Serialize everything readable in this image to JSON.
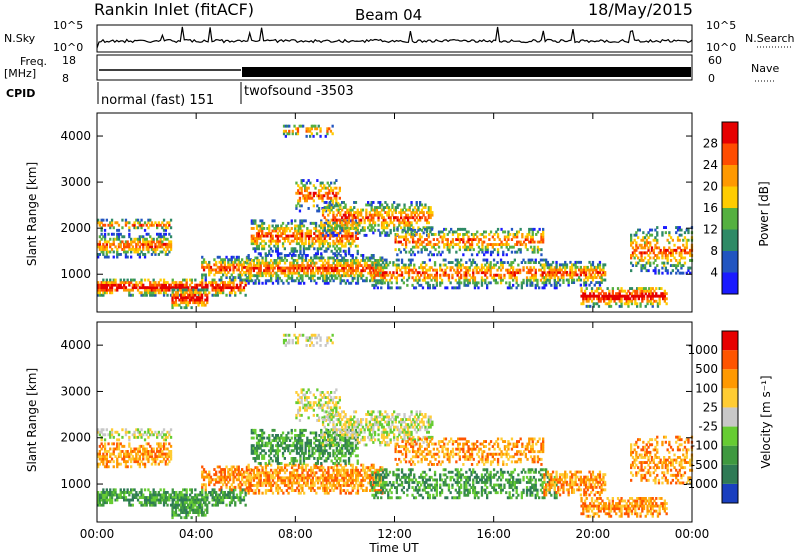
{
  "header": {
    "station": "Rankin Inlet (fitACF)",
    "beam": "Beam 04",
    "date": "18/May/2015"
  },
  "status_panels": {
    "nsky_label": "N.Sky",
    "nsky_ticks": [
      "10^5",
      "10^0"
    ],
    "nsearch_label": "N.Search",
    "nsearch_ticks": [
      "10^5",
      "10^0"
    ],
    "freq_label": "Freq.",
    "freq_unit": "[MHz]",
    "freq_ticks": [
      "18",
      "8"
    ],
    "nave_label": "Nave",
    "nave_ticks": [
      "60",
      "0"
    ],
    "cpid_label": "CPID",
    "cpid_modes": [
      {
        "name": "normal (fast) 151",
        "start_hour": 0.0
      },
      {
        "name": "twofsound -3503",
        "start_hour": 6.0
      }
    ]
  },
  "chart_data": [
    {
      "type": "heatmap",
      "ylabel": "Slant Range [km]",
      "ylim": [
        180,
        4500
      ],
      "yticks": [
        1000,
        2000,
        3000,
        4000
      ],
      "xlabel": "",
      "xlim": [
        0,
        24
      ],
      "colorbar": {
        "label": "Power [dB]",
        "ticks": [
          "4",
          "8",
          "12",
          "16",
          "20",
          "24",
          "28"
        ],
        "colors": [
          "#1a1aff",
          "#2255c0",
          "#2f8a66",
          "#55b040",
          "#ffcc00",
          "#ff9900",
          "#ff4d00",
          "#e60000"
        ]
      }
    },
    {
      "type": "heatmap",
      "ylabel": "Slant Range [km]",
      "ylim": [
        180,
        4500
      ],
      "yticks": [
        1000,
        2000,
        3000,
        4000
      ],
      "xlabel": "Time UT",
      "xlim": [
        0,
        24
      ],
      "xticks": [
        "00:00",
        "04:00",
        "08:00",
        "12:00",
        "16:00",
        "20:00",
        "00:00"
      ],
      "colorbar": {
        "label": "Velocity [m s⁻¹]",
        "ticks": [
          "1000",
          "500",
          "100",
          "25",
          "-25",
          "-100",
          "-500",
          "-1000"
        ],
        "colors": [
          "#1a3fbf",
          "#2f7a55",
          "#3f9940",
          "#66cc33",
          "#c8c8c8",
          "#ffcc33",
          "#ff9900",
          "#ff5500",
          "#e60000"
        ]
      }
    }
  ]
}
